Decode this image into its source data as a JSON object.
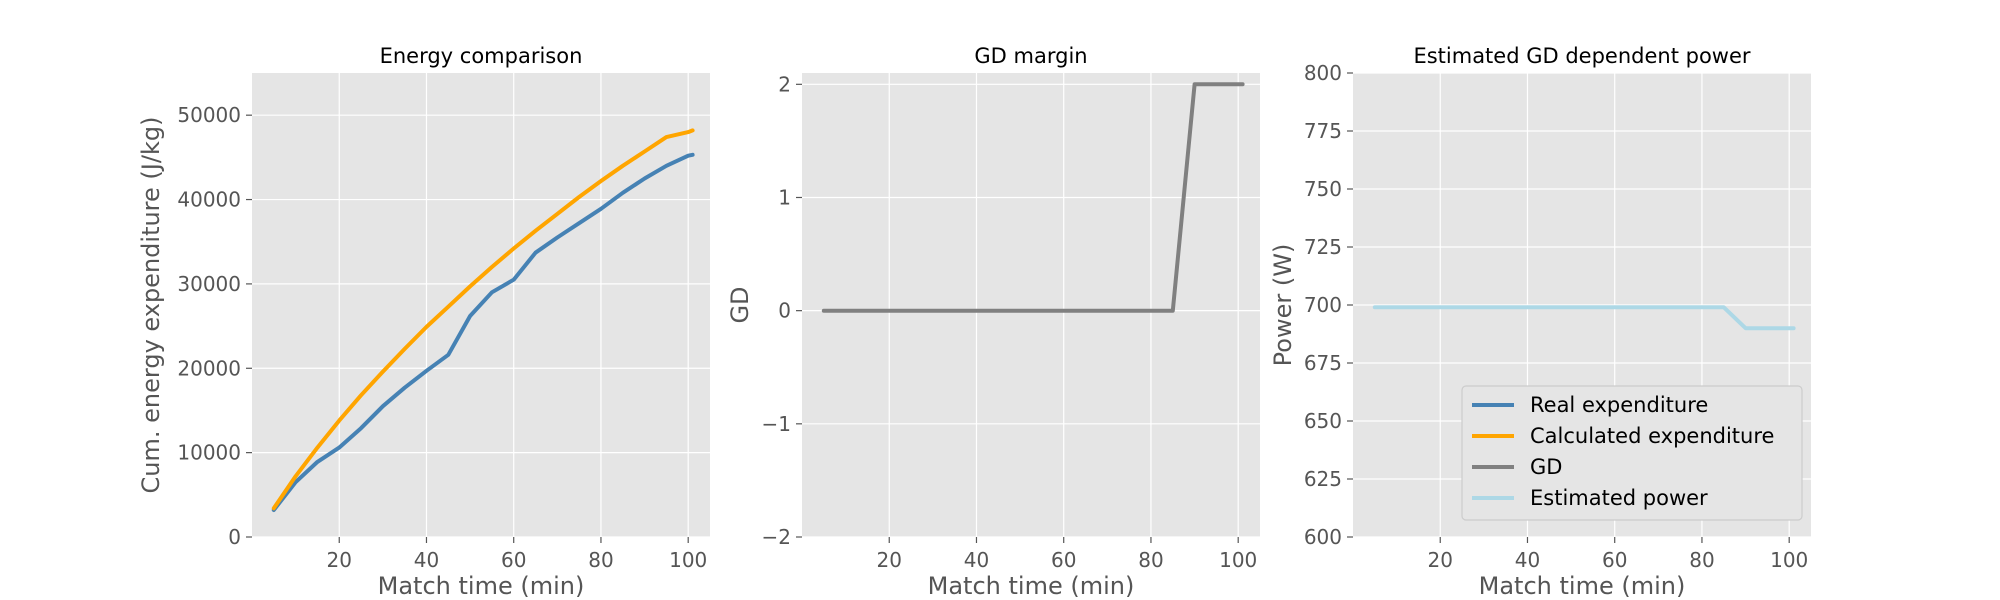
{
  "chart_data": [
    {
      "type": "line",
      "title": "Energy comparison",
      "xlabel": "Match time (min)",
      "ylabel": "Cum. energy expenditure (J/kg)",
      "xlim": [
        0,
        105
      ],
      "ylim": [
        0,
        55000
      ],
      "xticks": [
        20,
        40,
        60,
        80,
        100
      ],
      "yticks": [
        0,
        10000,
        20000,
        30000,
        40000,
        50000
      ],
      "grid": true,
      "series": [
        {
          "name": "Real expenditure",
          "color": "#4682b4",
          "x": [
            5,
            10,
            15,
            20,
            25,
            30,
            35,
            40,
            45,
            50,
            55,
            60,
            65,
            70,
            75,
            80,
            85,
            90,
            95,
            100,
            101
          ],
          "y": [
            3200,
            6500,
            8900,
            10600,
            12900,
            15500,
            17700,
            19700,
            21600,
            26200,
            29000,
            30500,
            33700,
            35500,
            37200,
            38900,
            40800,
            42500,
            44000,
            45200,
            45300
          ]
        },
        {
          "name": "Calculated expenditure",
          "color": "#ffa500",
          "x": [
            5,
            10,
            15,
            20,
            25,
            30,
            35,
            40,
            45,
            50,
            55,
            60,
            65,
            70,
            75,
            80,
            85,
            90,
            95,
            100,
            101
          ],
          "y": [
            3400,
            7200,
            10600,
            13800,
            16800,
            19600,
            22300,
            24900,
            27300,
            29700,
            32000,
            34200,
            36300,
            38300,
            40300,
            42200,
            44000,
            45700,
            47400,
            48000,
            48200
          ]
        }
      ]
    },
    {
      "type": "line",
      "title": "GD margin",
      "xlabel": "Match time (min)",
      "ylabel": "GD",
      "xlim": [
        0,
        105
      ],
      "ylim": [
        -2,
        2.1
      ],
      "xticks": [
        20,
        40,
        60,
        80,
        100
      ],
      "yticks": [
        -2,
        -1,
        0,
        1,
        2
      ],
      "ytick_labels": [
        "−2",
        "−1",
        "0",
        "1",
        "2"
      ],
      "grid": true,
      "series": [
        {
          "name": "GD",
          "color": "#808080",
          "x": [
            5,
            85,
            90,
            101
          ],
          "y": [
            0,
            0,
            2,
            2
          ]
        }
      ]
    },
    {
      "type": "line",
      "title": "Estimated GD dependent power",
      "xlabel": "Match time (min)",
      "ylabel": "Power (W)",
      "xlim": [
        0,
        105
      ],
      "ylim": [
        600,
        800
      ],
      "xticks": [
        20,
        40,
        60,
        80,
        100
      ],
      "yticks": [
        600,
        625,
        650,
        675,
        700,
        725,
        750,
        775,
        800
      ],
      "grid": true,
      "legend": {
        "placement": "lower-right",
        "entries": [
          {
            "label": "Real expenditure",
            "color": "#4682b4"
          },
          {
            "label": "Calculated expenditure",
            "color": "#ffa500"
          },
          {
            "label": "GD",
            "color": "#808080"
          },
          {
            "label": "Estimated power",
            "color": "#add8e6"
          }
        ]
      },
      "series": [
        {
          "name": "Estimated power",
          "color": "#add8e6",
          "x": [
            5,
            85,
            90,
            101
          ],
          "y": [
            699,
            699,
            690,
            690
          ]
        }
      ]
    }
  ]
}
